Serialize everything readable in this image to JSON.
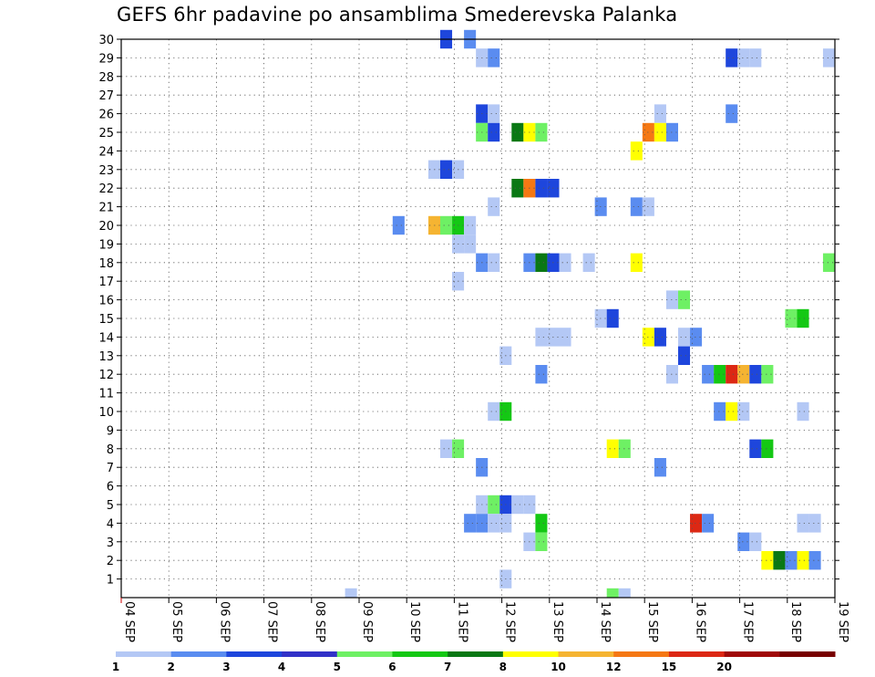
{
  "chart_data": {
    "type": "heatmap",
    "title": "GEFS 6hr padavine po ansamblima Smederevska Palanka",
    "x_tick_labels": [
      "04 SEP",
      "05 SEP",
      "06 SEP",
      "07 SEP",
      "08 SEP",
      "09 SEP",
      "10 SEP",
      "11 SEP",
      "12 SEP",
      "13 SEP",
      "14 SEP",
      "15 SEP",
      "16 SEP",
      "17 SEP",
      "18 SEP",
      "19 SEP"
    ],
    "xlim_days": [
      4,
      19
    ],
    "y_tick_labels": [
      "1",
      "2",
      "3",
      "4",
      "5",
      "6",
      "7",
      "8",
      "9",
      "10",
      "11",
      "12",
      "13",
      "14",
      "15",
      "16",
      "17",
      "18",
      "19",
      "20",
      "21",
      "22",
      "23",
      "24",
      "25",
      "26",
      "27",
      "28",
      "29",
      "30"
    ],
    "ylim": [
      0,
      30
    ],
    "legend_labels": [
      "1",
      "2",
      "3",
      "4",
      "5",
      "6",
      "7",
      "8",
      "10",
      "12",
      "15",
      "20"
    ],
    "legend_colors": [
      "#b4c8f5",
      "#5a8cf0",
      "#1e46dc",
      "#3232c8",
      "#6ef064",
      "#14c814",
      "#0a7814",
      "#ffff00",
      "#f5b432",
      "#f57814",
      "#dc2814",
      "#a00a0a",
      "#780000"
    ],
    "cells": [
      {
        "m": 30,
        "d": 10.83,
        "v": 3
      },
      {
        "m": 30,
        "d": 11.33,
        "v": 2
      },
      {
        "m": 29,
        "d": 11.58,
        "v": 1
      },
      {
        "m": 29,
        "d": 11.83,
        "v": 2
      },
      {
        "m": 29,
        "d": 16.83,
        "v": 3
      },
      {
        "m": 29,
        "d": 17.08,
        "v": 1
      },
      {
        "m": 29,
        "d": 17.33,
        "v": 1
      },
      {
        "m": 29,
        "d": 19.0,
        "v": 1
      },
      {
        "m": 26,
        "d": 11.58,
        "v": 3
      },
      {
        "m": 26,
        "d": 11.83,
        "v": 1
      },
      {
        "m": 26,
        "d": 15.33,
        "v": 1
      },
      {
        "m": 26,
        "d": 16.83,
        "v": 2
      },
      {
        "m": 25,
        "d": 11.58,
        "v": 5
      },
      {
        "m": 25,
        "d": 11.83,
        "v": 3
      },
      {
        "m": 25,
        "d": 12.33,
        "v": 7
      },
      {
        "m": 25,
        "d": 12.58,
        "v": 9
      },
      {
        "m": 25,
        "d": 12.83,
        "v": 5
      },
      {
        "m": 25,
        "d": 15.08,
        "v": 12
      },
      {
        "m": 25,
        "d": 15.33,
        "v": 8
      },
      {
        "m": 25,
        "d": 15.58,
        "v": 2
      },
      {
        "m": 24,
        "d": 14.83,
        "v": 8
      },
      {
        "m": 23,
        "d": 10.58,
        "v": 1
      },
      {
        "m": 23,
        "d": 10.83,
        "v": 3
      },
      {
        "m": 23,
        "d": 11.08,
        "v": 1
      },
      {
        "m": 22,
        "d": 12.33,
        "v": 7
      },
      {
        "m": 22,
        "d": 12.58,
        "v": 12
      },
      {
        "m": 22,
        "d": 12.83,
        "v": 3
      },
      {
        "m": 22,
        "d": 13.08,
        "v": 3
      },
      {
        "m": 21,
        "d": 11.83,
        "v": 1
      },
      {
        "m": 21,
        "d": 14.08,
        "v": 2
      },
      {
        "m": 21,
        "d": 14.83,
        "v": 2
      },
      {
        "m": 21,
        "d": 15.08,
        "v": 1
      },
      {
        "m": 20,
        "d": 9.83,
        "v": 2
      },
      {
        "m": 20,
        "d": 10.58,
        "v": 10
      },
      {
        "m": 20,
        "d": 10.83,
        "v": 5
      },
      {
        "m": 20,
        "d": 11.08,
        "v": 6
      },
      {
        "m": 20,
        "d": 11.33,
        "v": 1
      },
      {
        "m": 19,
        "d": 11.08,
        "v": 1
      },
      {
        "m": 19,
        "d": 11.33,
        "v": 1
      },
      {
        "m": 18,
        "d": 11.58,
        "v": 2
      },
      {
        "m": 18,
        "d": 11.83,
        "v": 1
      },
      {
        "m": 18,
        "d": 12.58,
        "v": 2
      },
      {
        "m": 18,
        "d": 12.83,
        "v": 7
      },
      {
        "m": 18,
        "d": 13.08,
        "v": 3
      },
      {
        "m": 18,
        "d": 13.33,
        "v": 1
      },
      {
        "m": 18,
        "d": 13.83,
        "v": 1
      },
      {
        "m": 18,
        "d": 14.83,
        "v": 8
      },
      {
        "m": 18,
        "d": 19.0,
        "v": 5
      },
      {
        "m": 17,
        "d": 11.08,
        "v": 1
      },
      {
        "m": 16,
        "d": 15.58,
        "v": 1
      },
      {
        "m": 16,
        "d": 15.83,
        "v": 5
      },
      {
        "m": 15,
        "d": 14.08,
        "v": 1
      },
      {
        "m": 15,
        "d": 14.33,
        "v": 3
      },
      {
        "m": 15,
        "d": 18.08,
        "v": 5
      },
      {
        "m": 15,
        "d": 18.33,
        "v": 6
      },
      {
        "m": 14,
        "d": 12.83,
        "v": 1
      },
      {
        "m": 14,
        "d": 13.08,
        "v": 1
      },
      {
        "m": 14,
        "d": 13.33,
        "v": 1
      },
      {
        "m": 14,
        "d": 15.08,
        "v": 8
      },
      {
        "m": 14,
        "d": 15.33,
        "v": 3
      },
      {
        "m": 14,
        "d": 15.83,
        "v": 1
      },
      {
        "m": 14,
        "d": 16.08,
        "v": 2
      },
      {
        "m": 13,
        "d": 12.08,
        "v": 1
      },
      {
        "m": 13,
        "d": 15.83,
        "v": 3
      },
      {
        "m": 12,
        "d": 12.83,
        "v": 2
      },
      {
        "m": 12,
        "d": 15.58,
        "v": 1
      },
      {
        "m": 12,
        "d": 16.33,
        "v": 2
      },
      {
        "m": 12,
        "d": 16.58,
        "v": 6
      },
      {
        "m": 12,
        "d": 16.83,
        "v": 15
      },
      {
        "m": 12,
        "d": 17.08,
        "v": 10
      },
      {
        "m": 12,
        "d": 17.33,
        "v": 3
      },
      {
        "m": 12,
        "d": 17.58,
        "v": 5
      },
      {
        "m": 10,
        "d": 11.83,
        "v": 1
      },
      {
        "m": 10,
        "d": 12.08,
        "v": 6
      },
      {
        "m": 10,
        "d": 16.58,
        "v": 2
      },
      {
        "m": 10,
        "d": 16.83,
        "v": 8
      },
      {
        "m": 10,
        "d": 17.08,
        "v": 1
      },
      {
        "m": 10,
        "d": 18.33,
        "v": 1
      },
      {
        "m": 8,
        "d": 10.83,
        "v": 1
      },
      {
        "m": 8,
        "d": 11.08,
        "v": 5
      },
      {
        "m": 8,
        "d": 14.33,
        "v": 9
      },
      {
        "m": 8,
        "d": 14.58,
        "v": 5
      },
      {
        "m": 8,
        "d": 17.33,
        "v": 3
      },
      {
        "m": 8,
        "d": 17.58,
        "v": 6
      },
      {
        "m": 7,
        "d": 11.58,
        "v": 2
      },
      {
        "m": 7,
        "d": 15.33,
        "v": 2
      },
      {
        "m": 5,
        "d": 11.58,
        "v": 1
      },
      {
        "m": 5,
        "d": 11.83,
        "v": 5
      },
      {
        "m": 5,
        "d": 12.08,
        "v": 3
      },
      {
        "m": 5,
        "d": 12.33,
        "v": 1
      },
      {
        "m": 5,
        "d": 12.58,
        "v": 1
      },
      {
        "m": 4,
        "d": 11.33,
        "v": 2
      },
      {
        "m": 4,
        "d": 11.58,
        "v": 2
      },
      {
        "m": 4,
        "d": 11.83,
        "v": 1
      },
      {
        "m": 4,
        "d": 12.08,
        "v": 1
      },
      {
        "m": 4,
        "d": 12.83,
        "v": 6
      },
      {
        "m": 4,
        "d": 16.08,
        "v": 15
      },
      {
        "m": 4,
        "d": 16.33,
        "v": 2
      },
      {
        "m": 4,
        "d": 18.33,
        "v": 1
      },
      {
        "m": 4,
        "d": 18.58,
        "v": 1
      },
      {
        "m": 3,
        "d": 12.58,
        "v": 1
      },
      {
        "m": 3,
        "d": 12.83,
        "v": 5
      },
      {
        "m": 3,
        "d": 17.08,
        "v": 2
      },
      {
        "m": 3,
        "d": 17.33,
        "v": 1
      },
      {
        "m": 2,
        "d": 17.58,
        "v": 8
      },
      {
        "m": 2,
        "d": 17.83,
        "v": 7
      },
      {
        "m": 2,
        "d": 18.08,
        "v": 2
      },
      {
        "m": 2,
        "d": 18.33,
        "v": 8
      },
      {
        "m": 2,
        "d": 18.58,
        "v": 2
      },
      {
        "m": 1,
        "d": 12.08,
        "v": 1
      },
      {
        "m": 0,
        "d": 8.83,
        "v": 1
      },
      {
        "m": 0,
        "d": 14.33,
        "v": 5
      },
      {
        "m": 0,
        "d": 14.58,
        "v": 1
      }
    ]
  }
}
